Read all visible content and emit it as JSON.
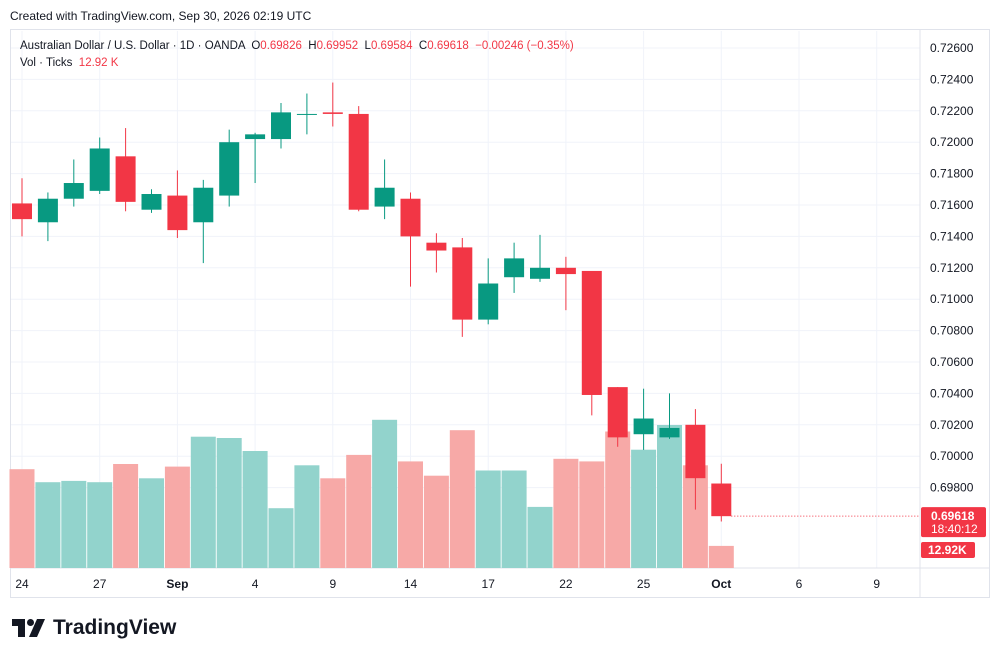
{
  "header": {
    "created": "Created with TradingView.com, Sep 30, 2026 02:19 UTC"
  },
  "legend": {
    "symbol": "Australian Dollar / U.S. Dollar · 1D · OANDA",
    "o_label": "O",
    "o_value": "0.69826",
    "h_label": "H",
    "h_value": "0.69952",
    "l_label": "L",
    "l_value": "0.69584",
    "c_label": "C",
    "c_value": "0.69618",
    "change": "−0.00246 (−0.35%)",
    "vol_label": "Vol · Ticks",
    "vol_value": "12.92 K"
  },
  "brand": {
    "name": "TradingView"
  },
  "colors": {
    "up": "#089981",
    "down": "#f23645",
    "vol_up": "#92d3cc",
    "vol_down": "#f7a9a7",
    "grid": "#f0f3fa",
    "axis_text": "#131722",
    "label_bg": "#f23645"
  },
  "chart_data": {
    "type": "candlestick",
    "price_axis": {
      "ticks": [
        "0.72600",
        "0.72400",
        "0.72200",
        "0.72000",
        "0.71800",
        "0.71600",
        "0.71400",
        "0.71200",
        "0.71000",
        "0.70800",
        "0.70600",
        "0.70400",
        "0.70200",
        "0.70000",
        "0.69800"
      ],
      "range": [
        0.6966,
        0.7272
      ]
    },
    "time_axis": {
      "ticks": [
        {
          "label": "24",
          "i": 0
        },
        {
          "label": "27",
          "i": 3
        },
        {
          "label": "Sep",
          "i": 6
        },
        {
          "label": "4",
          "i": 9
        },
        {
          "label": "9",
          "i": 12
        },
        {
          "label": "14",
          "i": 15
        },
        {
          "label": "17",
          "i": 18
        },
        {
          "label": "22",
          "i": 21
        },
        {
          "label": "25",
          "i": 24
        },
        {
          "label": "Oct",
          "i": 27
        },
        {
          "label": "6",
          "i": 30
        },
        {
          "label": "9",
          "i": 33
        }
      ]
    },
    "bars": [
      {
        "o": 0.7161,
        "h": 0.7177,
        "l": 0.714,
        "c": 0.7151,
        "v": 0.76
      },
      {
        "o": 0.7149,
        "h": 0.7168,
        "l": 0.7137,
        "c": 0.7164,
        "v": 0.66
      },
      {
        "o": 0.7164,
        "h": 0.7189,
        "l": 0.7159,
        "c": 0.7174,
        "v": 0.67
      },
      {
        "o": 0.7169,
        "h": 0.7203,
        "l": 0.7167,
        "c": 0.7196,
        "v": 0.66
      },
      {
        "o": 0.7191,
        "h": 0.7209,
        "l": 0.7156,
        "c": 0.7162,
        "v": 0.8
      },
      {
        "o": 0.7157,
        "h": 0.717,
        "l": 0.7155,
        "c": 0.7167,
        "v": 0.69
      },
      {
        "o": 0.7166,
        "h": 0.7182,
        "l": 0.7139,
        "c": 0.7144,
        "v": 0.78
      },
      {
        "o": 0.7149,
        "h": 0.7176,
        "l": 0.7123,
        "c": 0.7171,
        "v": 1.01
      },
      {
        "o": 0.7166,
        "h": 0.7208,
        "l": 0.7159,
        "c": 0.72,
        "v": 1.0
      },
      {
        "o": 0.7202,
        "h": 0.7206,
        "l": 0.7174,
        "c": 0.7205,
        "v": 0.9
      },
      {
        "o": 0.7202,
        "h": 0.7225,
        "l": 0.7196,
        "c": 0.7219,
        "v": 0.46
      },
      {
        "o": 0.7218,
        "h": 0.7231,
        "l": 0.7205,
        "c": 0.7218,
        "v": 0.79
      },
      {
        "o": 0.7219,
        "h": 0.7238,
        "l": 0.721,
        "c": 0.7218,
        "v": 0.69
      },
      {
        "o": 0.7218,
        "h": 0.7223,
        "l": 0.7156,
        "c": 0.7157,
        "v": 0.87
      },
      {
        "o": 0.7159,
        "h": 0.7189,
        "l": 0.7151,
        "c": 0.7171,
        "v": 1.14
      },
      {
        "o": 0.7164,
        "h": 0.7168,
        "l": 0.7108,
        "c": 0.714,
        "v": 0.82
      },
      {
        "o": 0.7136,
        "h": 0.7142,
        "l": 0.7117,
        "c": 0.7131,
        "v": 0.71
      },
      {
        "o": 0.7133,
        "h": 0.7139,
        "l": 0.7076,
        "c": 0.7087,
        "v": 1.06
      },
      {
        "o": 0.7087,
        "h": 0.7126,
        "l": 0.7084,
        "c": 0.711,
        "v": 0.75
      },
      {
        "o": 0.7114,
        "h": 0.7136,
        "l": 0.7104,
        "c": 0.7126,
        "v": 0.75
      },
      {
        "o": 0.7113,
        "h": 0.7141,
        "l": 0.7111,
        "c": 0.712,
        "v": 0.47
      },
      {
        "o": 0.712,
        "h": 0.7127,
        "l": 0.7093,
        "c": 0.7116,
        "v": 0.84
      },
      {
        "o": 0.7118,
        "h": 0.7118,
        "l": 0.7026,
        "c": 0.7039,
        "v": 0.82
      },
      {
        "o": 0.7044,
        "h": 0.7044,
        "l": 0.7006,
        "c": 0.7012,
        "v": 1.05
      },
      {
        "o": 0.7014,
        "h": 0.7043,
        "l": 0.7004,
        "c": 0.7024,
        "v": 0.91
      },
      {
        "o": 0.7012,
        "h": 0.704,
        "l": 0.7011,
        "c": 0.7018,
        "v": 1.1
      },
      {
        "o": 0.702,
        "h": 0.703,
        "l": 0.6966,
        "c": 0.6986,
        "v": 0.79
      },
      {
        "o": 0.69826,
        "h": 0.69952,
        "l": 0.69584,
        "c": 0.69618,
        "v": 0.17
      }
    ],
    "last_price": {
      "price": "0.69618",
      "countdown": "18:40:12",
      "volume": "12.92K"
    }
  }
}
